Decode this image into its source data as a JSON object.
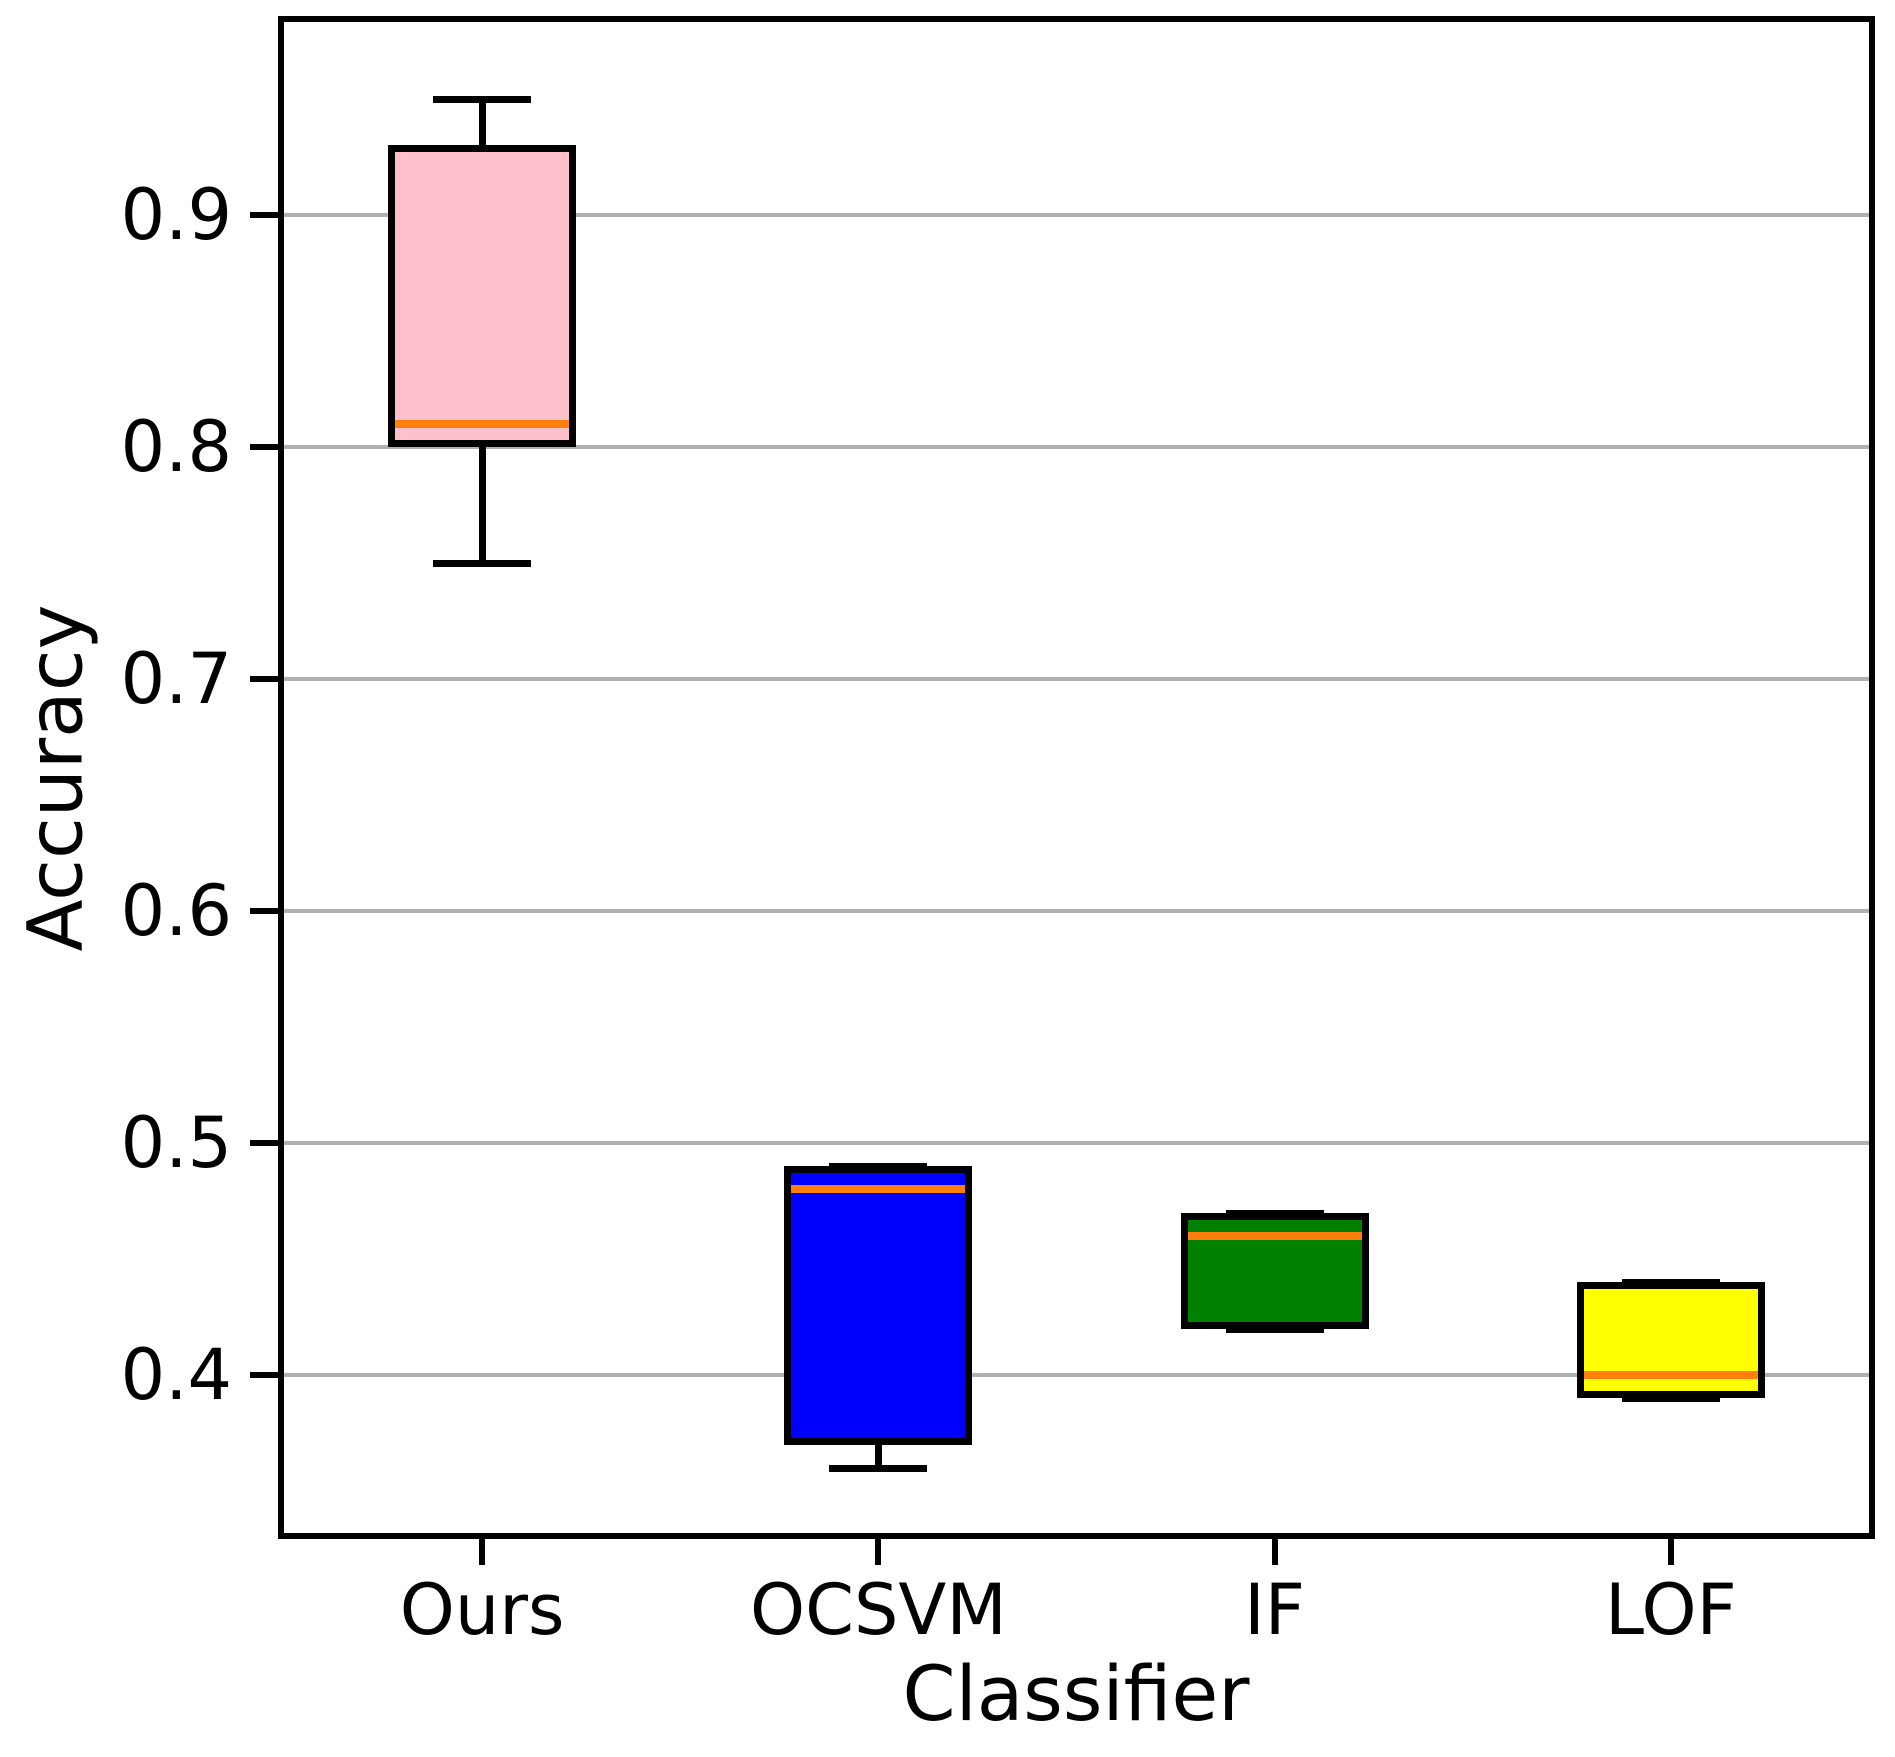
{
  "chart_data": {
    "type": "boxplot",
    "xlabel": "Classifier",
    "ylabel": "Accuracy",
    "categories": [
      "Ours",
      "OCSVM",
      "IF",
      "LOF"
    ],
    "series": [
      {
        "name": "Ours",
        "color": "#FFC0CB",
        "whisker_low": 0.75,
        "q1": 0.8,
        "median": 0.81,
        "q3": 0.93,
        "whisker_high": 0.95
      },
      {
        "name": "OCSVM",
        "color": "#0000FF",
        "whisker_low": 0.36,
        "q1": 0.37,
        "median": 0.48,
        "q3": 0.49,
        "whisker_high": 0.49
      },
      {
        "name": "IF",
        "color": "#008000",
        "whisker_low": 0.42,
        "q1": 0.42,
        "median": 0.46,
        "q3": 0.47,
        "whisker_high": 0.47
      },
      {
        "name": "LOF",
        "color": "#FFFF00",
        "whisker_low": 0.39,
        "q1": 0.39,
        "median": 0.4,
        "q3": 0.44,
        "whisker_high": 0.44
      }
    ],
    "ylim": [
      0.332,
      0.983
    ],
    "yticks": [
      0.9,
      0.8,
      0.7,
      0.6,
      0.5,
      0.4
    ],
    "yticklabels": [
      "0.9",
      "0.8",
      "0.7",
      "0.6",
      "0.5",
      "0.4"
    ],
    "grid": "horizontal",
    "legend": "none",
    "median_color": "#ff7f0e",
    "box_edge_color": "#000000",
    "grid_color": "#b0b0b0",
    "background_color": "#ffffff"
  }
}
